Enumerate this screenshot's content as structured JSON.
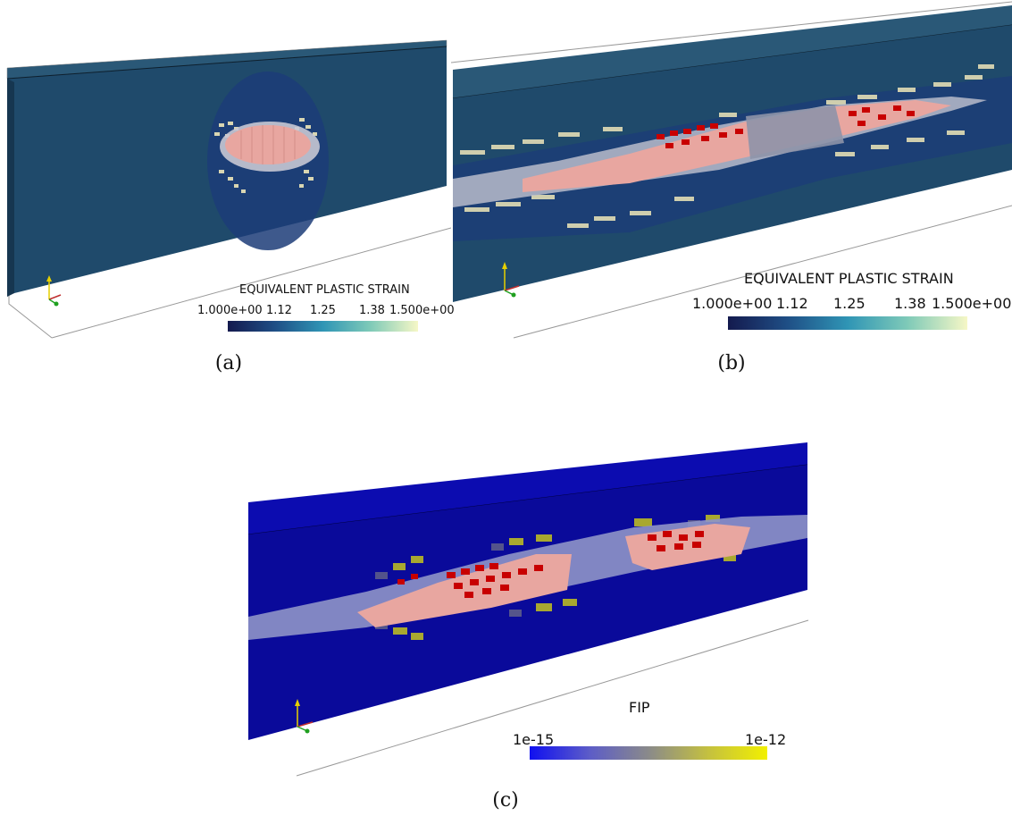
{
  "figure": {
    "panels": [
      {
        "caption": "(a)",
        "colorbar": {
          "title": "EQUIVALENT PLASTIC STRAIN",
          "ticks": [
            "1.000e+00",
            "1.12",
            "1.25",
            "1.38",
            "1.500e+00"
          ],
          "gradient": [
            "#141a4e",
            "#1f4f86",
            "#2f95b5",
            "#7fcab8",
            "#f6f7c6"
          ]
        }
      },
      {
        "caption": "(b)",
        "colorbar": {
          "title": "EQUIVALENT PLASTIC STRAIN",
          "ticks": [
            "1.000e+00",
            "1.12",
            "1.25",
            "1.38",
            "1.500e+00"
          ],
          "gradient": [
            "#141a4e",
            "#1f4f86",
            "#2f95b5",
            "#7fcab8",
            "#f6f7c6"
          ]
        }
      },
      {
        "caption": "(c)",
        "colorbar": {
          "title": "FIP",
          "ticks": [
            "1e-15",
            "1e-12"
          ],
          "gradient": [
            "#1010f0",
            "#5c5cc8",
            "#8a8a8a",
            "#c4c040",
            "#f2f000"
          ]
        }
      }
    ],
    "colors": {
      "domain_blue": "#1f4a6b",
      "domain_blue_c": "#0a0a9a",
      "crack_salmon": "#e8a6a0",
      "crack_red": "#c80000",
      "crack_lavender": "#8e93c8",
      "plastic_beige": "#d9d6b2",
      "fip_olive": "#a8a830"
    },
    "icons": [
      "axes-triad-icon"
    ]
  }
}
